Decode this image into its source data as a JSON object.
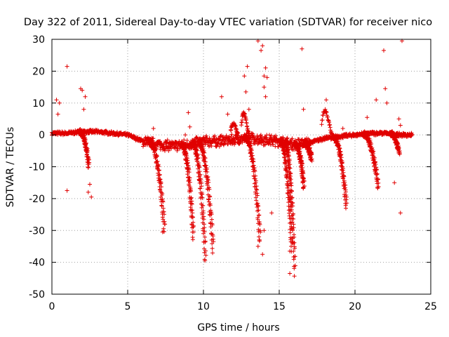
{
  "chart_data": {
    "type": "scatter",
    "title": "Day 322 of 2011, Sidereal Day-to-day VTEC variation (SDTVAR) for receiver nico",
    "xlabel": "GPS time / hours",
    "ylabel": "SDTVAR / TECUs",
    "xlim": [
      0,
      25
    ],
    "ylim": [
      -50,
      30
    ],
    "xticks": [
      0,
      5,
      10,
      15,
      20,
      25
    ],
    "yticks": [
      -50,
      -40,
      -30,
      -20,
      -10,
      0,
      10,
      20,
      30
    ],
    "grid": true,
    "marker": "+",
    "color": "#e00000",
    "baseline": {
      "x": [
        0.0,
        1.0,
        2.0,
        3.0,
        4.0,
        5.0,
        6.0,
        7.0,
        8.0,
        9.0,
        10.0,
        11.0,
        12.0,
        13.0,
        14.0,
        15.0,
        16.0,
        17.0,
        18.0,
        19.0,
        20.0,
        21.0,
        22.0,
        23.0,
        24.0
      ],
      "y": [
        0.5,
        0.5,
        1.0,
        1.0,
        0.5,
        0.0,
        -2.0,
        -3.0,
        -3.5,
        -3.0,
        -2.0,
        -2.0,
        -1.5,
        -1.0,
        -1.5,
        -2.0,
        -3.0,
        -2.5,
        -1.0,
        -0.5,
        0.0,
        0.5,
        0.5,
        0.0,
        0.0
      ]
    },
    "dips": [
      {
        "start": 6.4,
        "end": 7.4,
        "min": -31
      },
      {
        "start": 8.5,
        "end": 9.3,
        "min": -33
      },
      {
        "start": 9.2,
        "end": 10.1,
        "min": -40
      },
      {
        "start": 9.6,
        "end": 10.6,
        "min": -37
      },
      {
        "start": 12.7,
        "end": 13.7,
        "min": -34
      },
      {
        "start": 15.0,
        "end": 15.8,
        "min": -37
      },
      {
        "start": 15.3,
        "end": 16.0,
        "min": -44
      },
      {
        "start": 16.0,
        "end": 16.6,
        "min": -17
      },
      {
        "start": 16.6,
        "end": 17.1,
        "min": -8
      },
      {
        "start": 18.5,
        "end": 19.4,
        "min": -23
      },
      {
        "start": 20.5,
        "end": 21.5,
        "min": -17
      },
      {
        "start": 22.3,
        "end": 22.9,
        "min": -6
      },
      {
        "start": 1.8,
        "end": 2.4,
        "min": -10
      }
    ],
    "positive_bumps": [
      {
        "start": 17.8,
        "end": 18.5,
        "max": 11
      },
      {
        "start": 11.8,
        "end": 12.3,
        "max": 5
      },
      {
        "start": 12.5,
        "end": 13.0,
        "max": 10
      }
    ],
    "outliers": {
      "x": [
        1.0,
        1.0,
        0.3,
        0.4,
        0.5,
        1.9,
        2.0,
        2.1,
        2.2,
        2.5,
        2.6,
        2.4,
        9.0,
        9.1,
        11.2,
        11.6,
        12.7,
        12.8,
        13.0,
        13.6,
        13.8,
        13.9,
        14.0,
        14.1,
        14.2,
        14.0,
        14.1,
        14.5,
        15.7,
        15.7,
        16.5,
        16.6,
        18.1,
        19.2,
        20.8,
        21.4,
        21.9,
        22.0,
        22.1,
        22.6,
        23.1,
        23.0,
        22.9,
        23.0,
        12.9,
        13.7,
        13.9,
        13.6,
        14.0,
        6.7,
        7.3,
        8.8
      ],
      "y": [
        21.5,
        -17.5,
        11,
        6.5,
        10,
        14.5,
        14,
        8,
        12,
        -15.5,
        -19.5,
        -18,
        7,
        2.5,
        12,
        6.5,
        18.5,
        13.5,
        8,
        29.5,
        26.5,
        28,
        18.5,
        21,
        18,
        15,
        12,
        -24.5,
        -43.5,
        -36.5,
        27,
        8,
        11,
        2,
        5.5,
        11,
        26.5,
        14.5,
        10,
        -15,
        29.5,
        -24.5,
        5,
        3,
        21.5,
        -33,
        -37.5,
        -35,
        -30,
        2,
        -30.5,
        0
      ]
    }
  }
}
